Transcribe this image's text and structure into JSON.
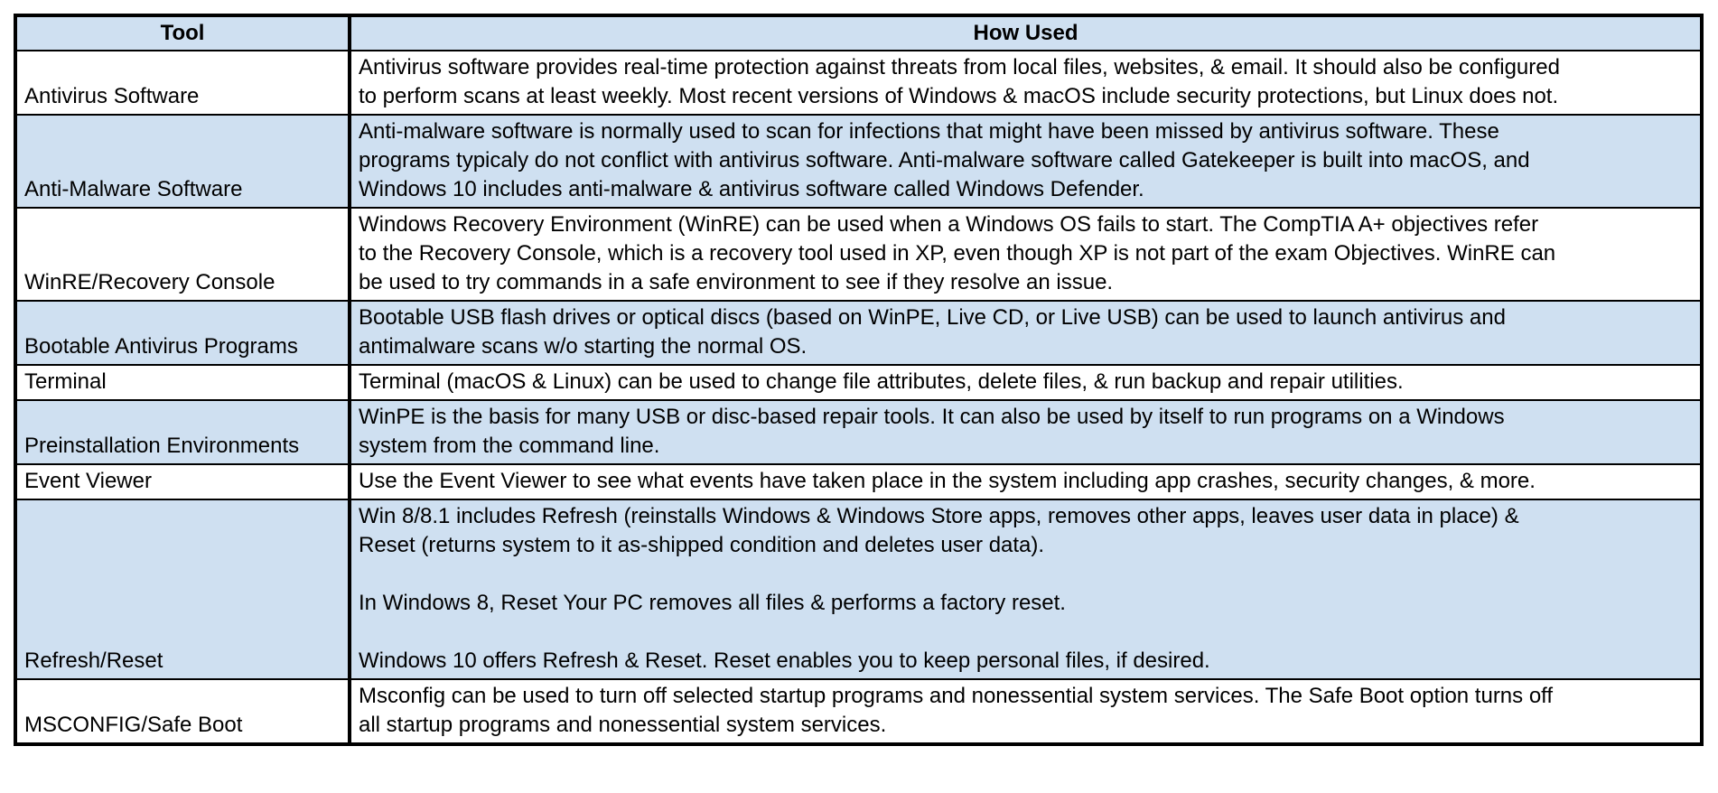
{
  "colors": {
    "shaded_row": "#cfe0f1",
    "plain_row": "#ffffff",
    "border": "#000000"
  },
  "header": {
    "tool": "Tool",
    "how_used": "How Used"
  },
  "rows": [
    {
      "tool": "Antivirus Software",
      "shaded": false,
      "lines": [
        "Antivirus software provides real-time protection against threats from local files, websites, & email.  It should also be configured",
        "to perform scans at least weekly.  Most recent versions of Windows & macOS include security protections, but Linux does not."
      ]
    },
    {
      "tool": "Anti-Malware Software",
      "shaded": true,
      "lines": [
        "Anti-malware software is normally used to scan for infections that might have been missed by antivirus software.  These",
        "programs typicaly do not conflict with antivirus software.  Anti-malware software called Gatekeeper is built into macOS, and",
        "Windows 10 includes anti-malware & antivirus software called Windows Defender."
      ]
    },
    {
      "tool": "WinRE/Recovery Console",
      "shaded": false,
      "lines": [
        "Windows Recovery Environment (WinRE) can be used when a Windows OS fails to start.  The CompTIA A+ objectives refer",
        "to the Recovery Console, which is a recovery tool used in XP, even though XP is not part of the exam Objectives.  WinRE can",
        "be used to try commands in a safe environment to see if they resolve an issue."
      ]
    },
    {
      "tool": "Bootable Antivirus Programs",
      "shaded": true,
      "lines": [
        "Bootable USB flash drives or optical discs (based on WinPE, Live CD, or Live USB) can be used to launch antivirus and",
        "antimalware scans w/o starting the normal OS."
      ]
    },
    {
      "tool": "Terminal",
      "shaded": false,
      "lines": [
        "Terminal (macOS & Linux) can be used to change file attributes, delete files, & run backup and repair utilities."
      ]
    },
    {
      "tool": "Preinstallation Environments",
      "shaded": true,
      "lines": [
        "WinPE is the basis for many USB or disc-based repair tools.  It can also be used by itself to run programs on a Windows",
        "system from the command line."
      ]
    },
    {
      "tool": "Event Viewer",
      "shaded": false,
      "lines": [
        "Use the Event Viewer to see what events have taken place in the system including app crashes, security changes, & more."
      ]
    },
    {
      "tool": "Refresh/Reset",
      "shaded": true,
      "lines": [
        "Win 8/8.1 includes Refresh (reinstalls Windows & Windows Store apps, removes other apps, leaves user data in place) &",
        "Reset (returns system to it as-shipped condition and deletes user data).",
        "",
        "In Windows 8, Reset Your PC removes all files & performs a factory reset.",
        "",
        "Windows 10 offers Refresh & Reset.  Reset enables you to keep personal files, if desired."
      ]
    },
    {
      "tool": "MSCONFIG/Safe Boot",
      "shaded": false,
      "lines": [
        "Msconfig can be used to turn off selected startup programs and nonessential system services.  The Safe Boot option turns off",
        "all startup programs and nonessential system services."
      ]
    }
  ]
}
